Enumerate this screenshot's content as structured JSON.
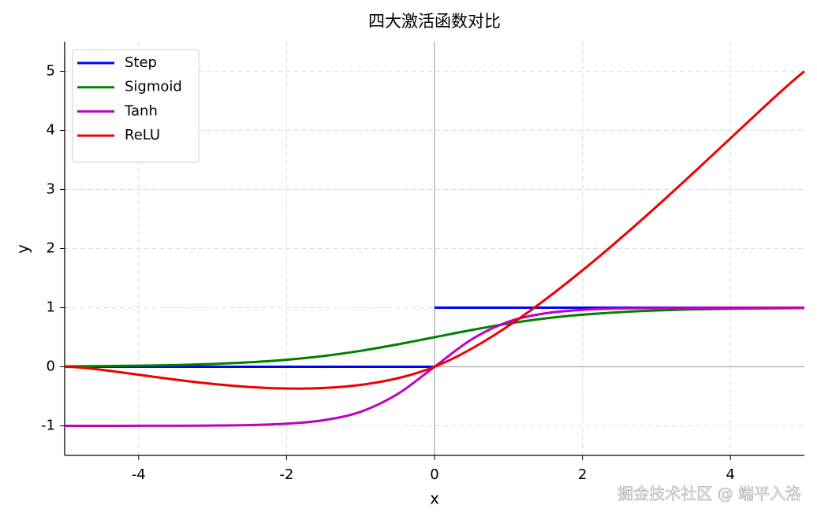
{
  "chart_data": {
    "type": "line",
    "title": "四大激活函数对比",
    "x_label": "x",
    "y_label": "y",
    "xlim": [
      -5,
      5
    ],
    "ylim": [
      -1.5,
      5.5
    ],
    "xticks": [
      -4,
      -2,
      0,
      2,
      4
    ],
    "yticks": [
      -1,
      0,
      1,
      2,
      3,
      4,
      5
    ],
    "grid": true,
    "legend": "upper-left",
    "zero_axes": true,
    "watermark": "掘金技术社区 @ 端平入洛",
    "series": [
      {
        "name": "Step",
        "color": "#0000ff",
        "x": [
          -5,
          0,
          0,
          0,
          5
        ],
        "values": [
          0,
          0,
          null,
          1,
          1
        ]
      },
      {
        "name": "Sigmoid",
        "color": "#008000",
        "x": [
          -5,
          -4.5,
          -4,
          -3.5,
          -3,
          -2.5,
          -2,
          -1.5,
          -1,
          -0.5,
          0,
          0.5,
          1,
          1.5,
          2,
          2.5,
          3,
          3.5,
          4,
          4.5,
          5
        ],
        "values": [
          0.007,
          0.011,
          0.018,
          0.029,
          0.047,
          0.076,
          0.119,
          0.182,
          0.269,
          0.378,
          0.5,
          0.622,
          0.731,
          0.818,
          0.881,
          0.924,
          0.953,
          0.971,
          0.982,
          0.989,
          0.993
        ]
      },
      {
        "name": "Tanh",
        "color": "#bf00bf",
        "x": [
          -5,
          -4.5,
          -4,
          -3.5,
          -3,
          -2.5,
          -2,
          -1.5,
          -1,
          -0.5,
          0,
          0.5,
          1,
          1.5,
          2,
          2.5,
          3,
          3.5,
          4,
          4.5,
          5
        ],
        "values": [
          -1,
          -1,
          -0.999,
          -0.998,
          -0.995,
          -0.987,
          -0.964,
          -0.905,
          -0.762,
          -0.462,
          0,
          0.462,
          0.762,
          0.905,
          0.964,
          0.987,
          0.995,
          0.998,
          0.999,
          1,
          1
        ]
      },
      {
        "name": "ReLU",
        "color": "#ee0000",
        "x": [
          -5,
          0,
          5
        ],
        "values": [
          0,
          0,
          5
        ]
      }
    ]
  }
}
